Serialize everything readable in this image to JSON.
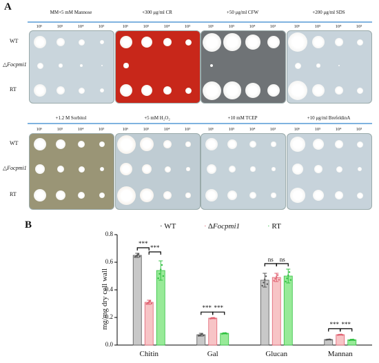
{
  "panel_a": {
    "letter": "A",
    "top_row": {
      "conditions": [
        "MM+5 mM Mannose",
        "+300 μg/ml CR",
        "+50 μg/ml CFW",
        "+200 μg/ml SDS"
      ],
      "strains": [
        "WT",
        "ΔFocpmi1",
        "RT"
      ]
    },
    "bottom_row": {
      "conditions": [
        "+1.2 M Sorbitol",
        "+5 mM H₂O₂",
        "+10 mM TCEP",
        "+10 μg/ml BrefeldinA"
      ],
      "strains": [
        "WT",
        "ΔFocpmi1",
        "RT"
      ]
    },
    "dilutions": [
      "10⁶",
      "10⁵",
      "10⁴",
      "10³"
    ],
    "strain_prefix": "△",
    "strain_mutant": "Focpmi1",
    "strain_wt": "WT",
    "strain_rt": "RT"
  },
  "panel_b": {
    "letter": "B",
    "legend": {
      "wt": "WT",
      "mut_prefix": "Δ",
      "mut_name": "Focpmi1",
      "rt": "RT"
    }
  },
  "chart_data": {
    "type": "bar",
    "categories": [
      "Chitin",
      "Gal",
      "Glucan",
      "Mannan"
    ],
    "series": [
      {
        "name": "WT",
        "values": [
          0.65,
          0.075,
          0.47,
          0.04
        ],
        "errors": [
          0.015,
          0.01,
          0.05,
          0.003
        ],
        "color": "#c8c8c8",
        "edge": "#555555"
      },
      {
        "name": "ΔFocpmi1",
        "values": [
          0.31,
          0.195,
          0.49,
          0.075
        ],
        "errors": [
          0.015,
          0.004,
          0.03,
          0.003
        ],
        "color": "#f7c4c6",
        "edge": "#e06070"
      },
      {
        "name": "RT",
        "values": [
          0.54,
          0.085,
          0.5,
          0.038
        ],
        "errors": [
          0.07,
          0.004,
          0.05,
          0.004
        ],
        "color": "#98ea98",
        "edge": "#30c040"
      }
    ],
    "ylabel": "mg/mg dry cell wall",
    "ylim": [
      0.0,
      0.8
    ],
    "yticks": [
      "0.0",
      "0.2",
      "0.4",
      "0.6",
      "0.8"
    ],
    "significance": [
      {
        "category": "Chitin",
        "wt_mut": "***",
        "mut_rt": "***"
      },
      {
        "category": "Gal",
        "wt_mut": "***",
        "mut_rt": "***"
      },
      {
        "category": "Glucan",
        "wt_mut": "ns",
        "mut_rt": "ns"
      },
      {
        "category": "Mannan",
        "wt_mut": "***",
        "mut_rt": "***"
      }
    ]
  }
}
